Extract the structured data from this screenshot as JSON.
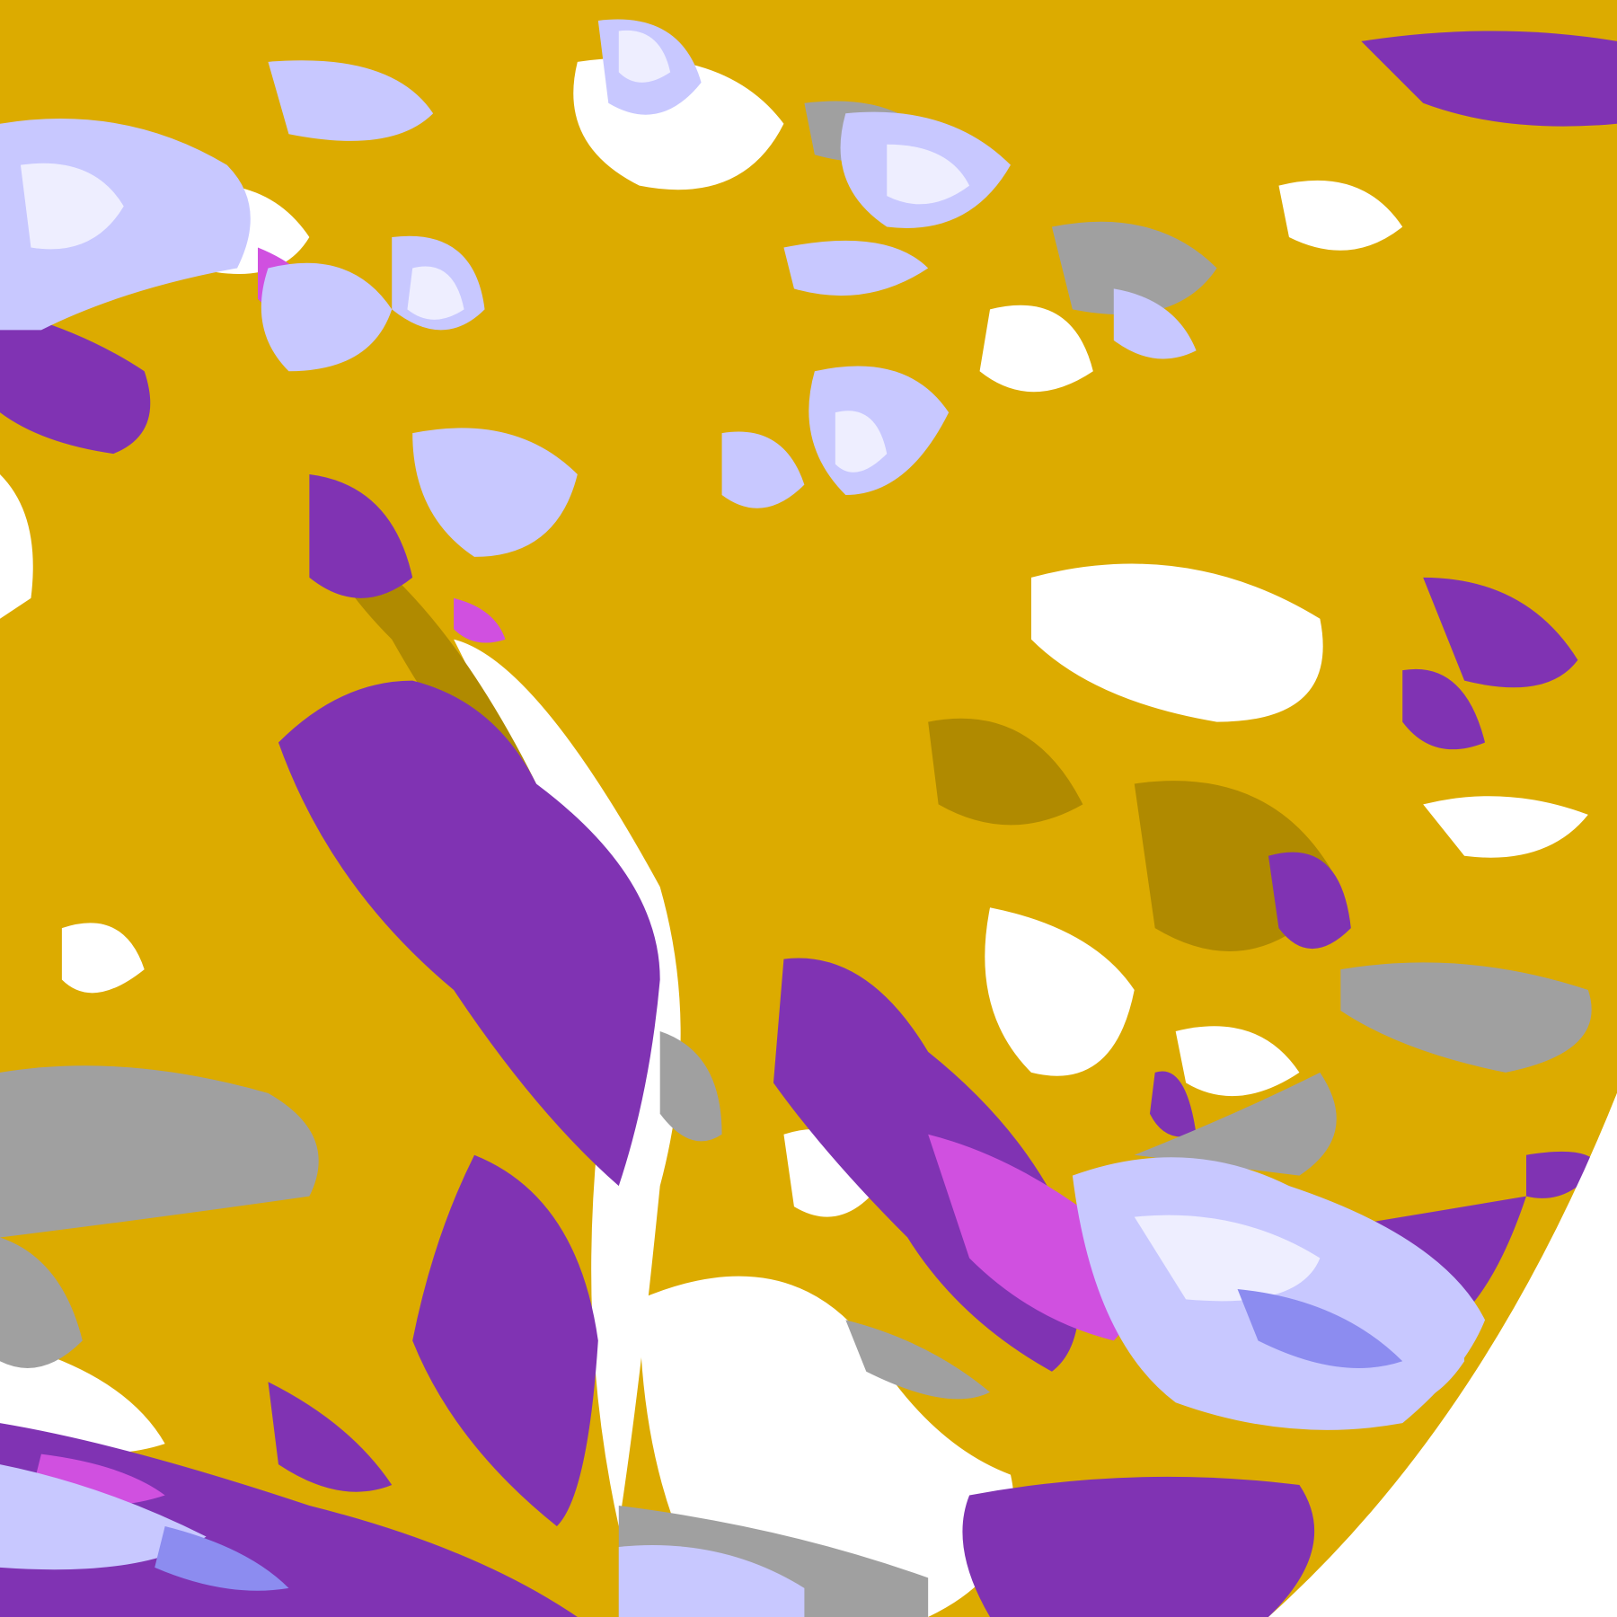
{
  "image": {
    "type": "satellite-cloud-classification",
    "colors": {
      "background": "#ffffff",
      "gold": "#dcab00",
      "gold_dark": "#b08a00",
      "purple": "#8033b3",
      "magenta": "#d050e0",
      "lavender": "#c8c8ff",
      "pale": "#eeeeff",
      "periwinkle": "#8c8cf0",
      "gray": "#a0a0a0"
    }
  }
}
